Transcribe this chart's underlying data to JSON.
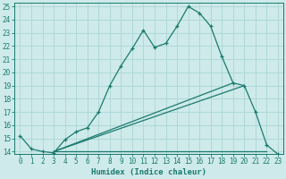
{
  "x": [
    0,
    1,
    2,
    3,
    4,
    5,
    6,
    7,
    8,
    9,
    10,
    11,
    12,
    13,
    14,
    15,
    16,
    17,
    18,
    19,
    20,
    21,
    22,
    23
  ],
  "y_main": [
    15.2,
    14.2,
    14.0,
    13.9,
    14.9,
    15.5,
    15.8,
    17.0,
    19.0,
    20.5,
    21.8,
    23.2,
    21.9,
    22.2,
    23.5,
    25.0,
    24.5,
    23.5,
    21.2,
    19.2,
    19.0,
    17.0,
    14.5,
    13.8
  ],
  "line1_x": [
    3,
    19
  ],
  "line1_y": [
    14.0,
    19.2
  ],
  "line2_x": [
    3,
    20
  ],
  "line2_y": [
    14.0,
    19.0
  ],
  "hline_x": [
    3,
    22
  ],
  "hline_y": [
    14.0,
    14.0
  ],
  "line_color": "#1a7a6e",
  "bg_color": "#ceeaea",
  "grid_color": "#b0d8d8",
  "xlabel": "Humidex (Indice chaleur)",
  "xlim": [
    -0.5,
    23.5
  ],
  "ylim": [
    13.8,
    25.3
  ],
  "yticks": [
    14,
    15,
    16,
    17,
    18,
    19,
    20,
    21,
    22,
    23,
    24,
    25
  ],
  "xticks": [
    0,
    1,
    2,
    3,
    4,
    5,
    6,
    7,
    8,
    9,
    10,
    11,
    12,
    13,
    14,
    15,
    16,
    17,
    18,
    19,
    20,
    21,
    22,
    23
  ]
}
